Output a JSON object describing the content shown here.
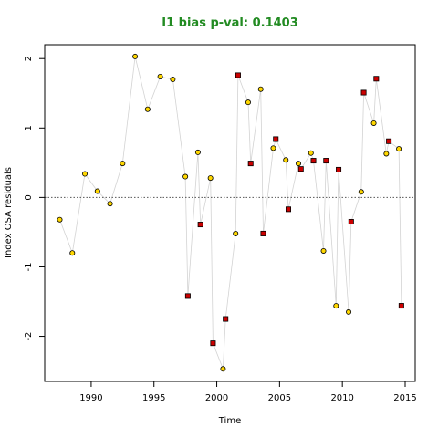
{
  "chart_data": {
    "type": "scatter",
    "title": "I1 bias p-val: 0.1403",
    "xlabel": "Time",
    "ylabel": "Index OSA residuals",
    "xlim": [
      1986.3,
      2015.8
    ],
    "ylim": [
      -2.65,
      2.2
    ],
    "x_ticks": [
      1990,
      1995,
      2000,
      2005,
      2010,
      2015
    ],
    "x_tick_labels": [
      "1990",
      "1995",
      "2000",
      "2005",
      "2010",
      "2015"
    ],
    "y_ticks": [
      -2,
      -1,
      0,
      1,
      2
    ],
    "y_tick_labels": [
      "-2",
      "-1",
      "0",
      "1",
      "2"
    ],
    "reference_line": {
      "y": 0,
      "style": "dotted"
    },
    "colors": {
      "title": "#228b22",
      "positive_marker": "#ffd700",
      "negative_marker": "#cc0000",
      "connector": "#d3d3d3",
      "axis": "#000000"
    },
    "series": [
      {
        "marker": "circle",
        "color": "#ffd700",
        "x": [
          1987.5,
          1988.5,
          1989.5,
          1990.5,
          1991.5,
          1992.5,
          1993.5,
          1994.5,
          1995.5,
          1996.5,
          1997.5,
          1998.5,
          1999.5,
          2000.5,
          2001.5,
          2002.5,
          2003.5,
          2004.5,
          2005.5,
          2006.5,
          2007.5,
          2008.5,
          2009.5,
          2010.5,
          2011.5,
          2012.5,
          2013.5,
          2014.5
        ],
        "y": [
          -0.32,
          -0.8,
          0.34,
          0.09,
          -0.09,
          0.49,
          2.03,
          1.27,
          1.74,
          1.7,
          0.3,
          0.65,
          0.28,
          -2.47,
          -0.52,
          1.37,
          1.56,
          0.71,
          0.54,
          0.49,
          0.64,
          -0.77,
          -1.56,
          -1.65,
          0.08,
          1.07,
          0.63,
          0.7
        ]
      },
      {
        "marker": "square",
        "color": "#cc0000",
        "x": [
          1997.7,
          1998.7,
          1999.7,
          2000.7,
          2001.7,
          2002.7,
          2003.7,
          2004.7,
          2005.7,
          2006.7,
          2007.7,
          2008.7,
          2009.7,
          2010.7,
          2011.7,
          2012.7,
          2013.7,
          2014.7
        ],
        "y": [
          -1.42,
          -0.39,
          -2.1,
          -1.75,
          1.76,
          0.49,
          -0.52,
          0.84,
          -0.17,
          0.41,
          0.53,
          0.53,
          0.4,
          -0.35,
          1.51,
          1.71,
          0.81,
          -1.56
        ]
      }
    ],
    "grid": false,
    "legend": "none"
  }
}
